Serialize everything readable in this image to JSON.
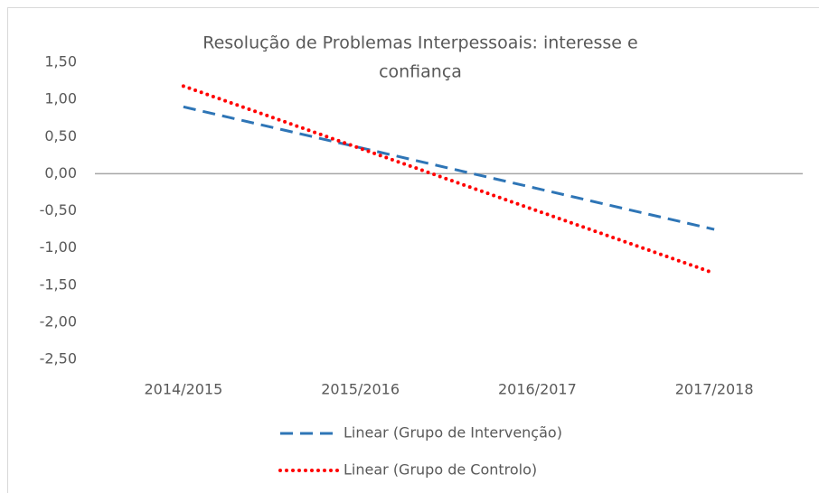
{
  "chart_data": {
    "type": "line",
    "title": [
      "Resolução de Problemas Interpessoais: interesse e",
      "confiança"
    ],
    "categories": [
      "2014/2015",
      "2015/2016",
      "2016/2017",
      "2017/2018"
    ],
    "series": [
      {
        "name": "Linear (Grupo de Intervenção)",
        "color": "#2e75b6",
        "style": "dashed",
        "values": [
          0.9,
          0.35,
          -0.2,
          -0.75
        ]
      },
      {
        "name": "Linear (Grupo de Controlo)",
        "color": "#ff0000",
        "style": "dotted",
        "values": [
          1.18,
          0.34,
          -0.5,
          -1.34
        ]
      }
    ],
    "ylim": [
      -2.5,
      1.5
    ],
    "yticks": [
      {
        "value": 1.5,
        "label": "1,50"
      },
      {
        "value": 1.0,
        "label": "1,00"
      },
      {
        "value": 0.5,
        "label": "0,50"
      },
      {
        "value": 0,
        "label": "0,00"
      },
      {
        "value": -0.5,
        "label": "-0,50"
      },
      {
        "value": -1.0,
        "label": "-1,00"
      },
      {
        "value": -1.5,
        "label": "-1,50"
      },
      {
        "value": -2.0,
        "label": "-2,00"
      },
      {
        "value": -2.5,
        "label": "-2,50"
      }
    ],
    "grid": false,
    "legend": "bottom"
  }
}
